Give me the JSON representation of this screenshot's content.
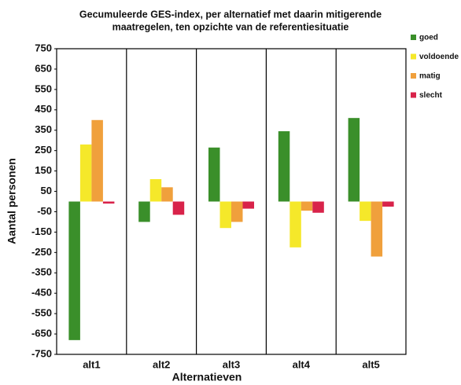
{
  "chart_data": {
    "type": "bar",
    "title": [
      "Gecumuleerde GES-index, per alternatief met daarin mitigerende",
      "maatregelen, ten opzichte van de referentiesituatie"
    ],
    "x_label": "Alternatieven",
    "y_label": "Aantal personen",
    "categories": [
      "alt1",
      "alt2",
      "alt3",
      "alt4",
      "alt5"
    ],
    "series": [
      {
        "name": "goed",
        "color": "#3a8f2a",
        "values": [
          -680,
          -100,
          265,
          345,
          410
        ]
      },
      {
        "name": "voldoende",
        "color": "#f5e82a",
        "values": [
          280,
          110,
          -130,
          -225,
          -95
        ]
      },
      {
        "name": "matig",
        "color": "#f0a03c",
        "values": [
          400,
          70,
          -100,
          -45,
          -270
        ]
      },
      {
        "name": "slecht",
        "color": "#d8234a",
        "values": [
          -10,
          -65,
          -35,
          -55,
          -25
        ]
      }
    ],
    "ylim": [
      -750,
      750
    ],
    "yticks": [
      -750,
      -650,
      -550,
      -450,
      -350,
      -250,
      -150,
      -50,
      50,
      150,
      250,
      350,
      450,
      550,
      650,
      750
    ],
    "legend": "right"
  }
}
